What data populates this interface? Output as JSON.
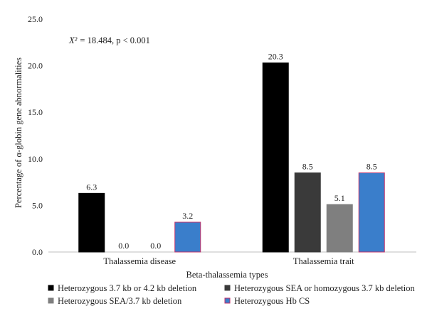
{
  "chart_data": {
    "type": "bar",
    "annotation": "= 18.484, p < 0.001",
    "annotation_prefix": "X²",
    "xlabel": "Beta-thalassemia types",
    "ylabel": "Percentage of α-globin gene abnormalities",
    "ylim": [
      0,
      25
    ],
    "yticks": [
      "0.0",
      "5.0",
      "10.0",
      "15.0",
      "20.0",
      "25.0"
    ],
    "ytick_values": [
      0,
      5,
      10,
      15,
      20,
      25
    ],
    "grid": false,
    "legend_position": "bottom",
    "categories": [
      "Thalassemia disease",
      "Thalassemia trait"
    ],
    "series": [
      {
        "name": "Heterozygous 3.7 kb or 4.2 kb deletion",
        "color": "#000000",
        "stroke": "#000000",
        "values": [
          6.3,
          20.3
        ],
        "labels": [
          "6.3",
          "20.3"
        ]
      },
      {
        "name": "Heterozygous SEA or homozygous 3.7 kb deletion",
        "color": "#3a3a3a",
        "stroke": "#3a3a3a",
        "values": [
          0.0,
          8.5
        ],
        "labels": [
          "0.0",
          "8.5"
        ]
      },
      {
        "name": "Heterozygous SEA/3.7 kb deletion",
        "color": "#7f7f7f",
        "stroke": "#7f7f7f",
        "values": [
          0.0,
          5.1
        ],
        "labels": [
          "0.0",
          "5.1"
        ]
      },
      {
        "name": "Heterozygous Hb CS",
        "color": "#3a7ecb",
        "stroke": "#c0306a",
        "values": [
          3.2,
          8.5
        ],
        "labels": [
          "3.2",
          "8.5"
        ]
      }
    ]
  }
}
